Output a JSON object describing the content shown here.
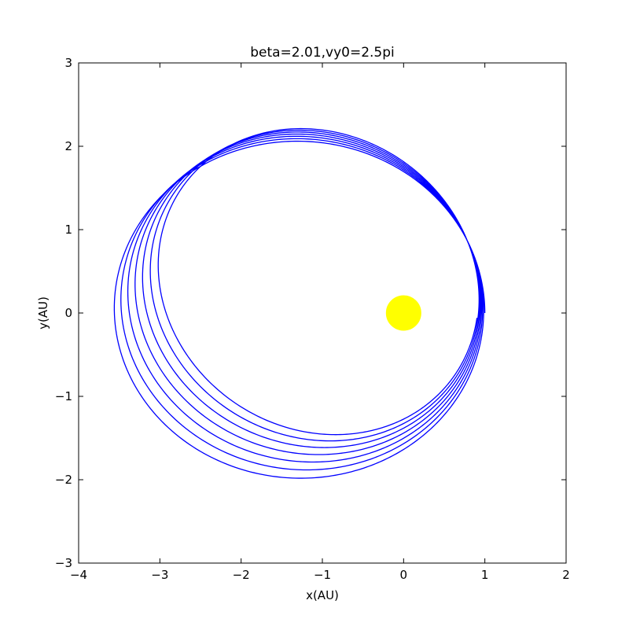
{
  "chart_data": {
    "type": "line",
    "title": "beta=2.01,vy0=2.5pi",
    "xlabel": "x(AU)",
    "ylabel": "y(AU)",
    "xlim": [
      -4,
      2
    ],
    "ylim": [
      -3,
      3
    ],
    "xticks": [
      -4,
      -3,
      -2,
      -1,
      0,
      1,
      2
    ],
    "yticks": [
      -3,
      -2,
      -1,
      0,
      1,
      2,
      3
    ],
    "xtick_labels": [
      "−4",
      "−3",
      "−2",
      "−1",
      "0",
      "1",
      "2"
    ],
    "ytick_labels": [
      "−3",
      "−2",
      "−1",
      "0",
      "1",
      "2",
      "3"
    ],
    "grid": false,
    "sun": {
      "x": 0,
      "y": 0,
      "color": "#ffff00"
    },
    "orbit": {
      "color": "#0000ff",
      "start": [
        1.0,
        0.0
      ],
      "revolutions": 7,
      "periapsis_x": 1.0,
      "apoapsis_x": -3.6,
      "semi_minor": 2.05,
      "precession_per_rev_deg": -2.8,
      "shrink_per_rev": 0.02,
      "end": [
        -3.45,
        -0.07
      ]
    }
  }
}
